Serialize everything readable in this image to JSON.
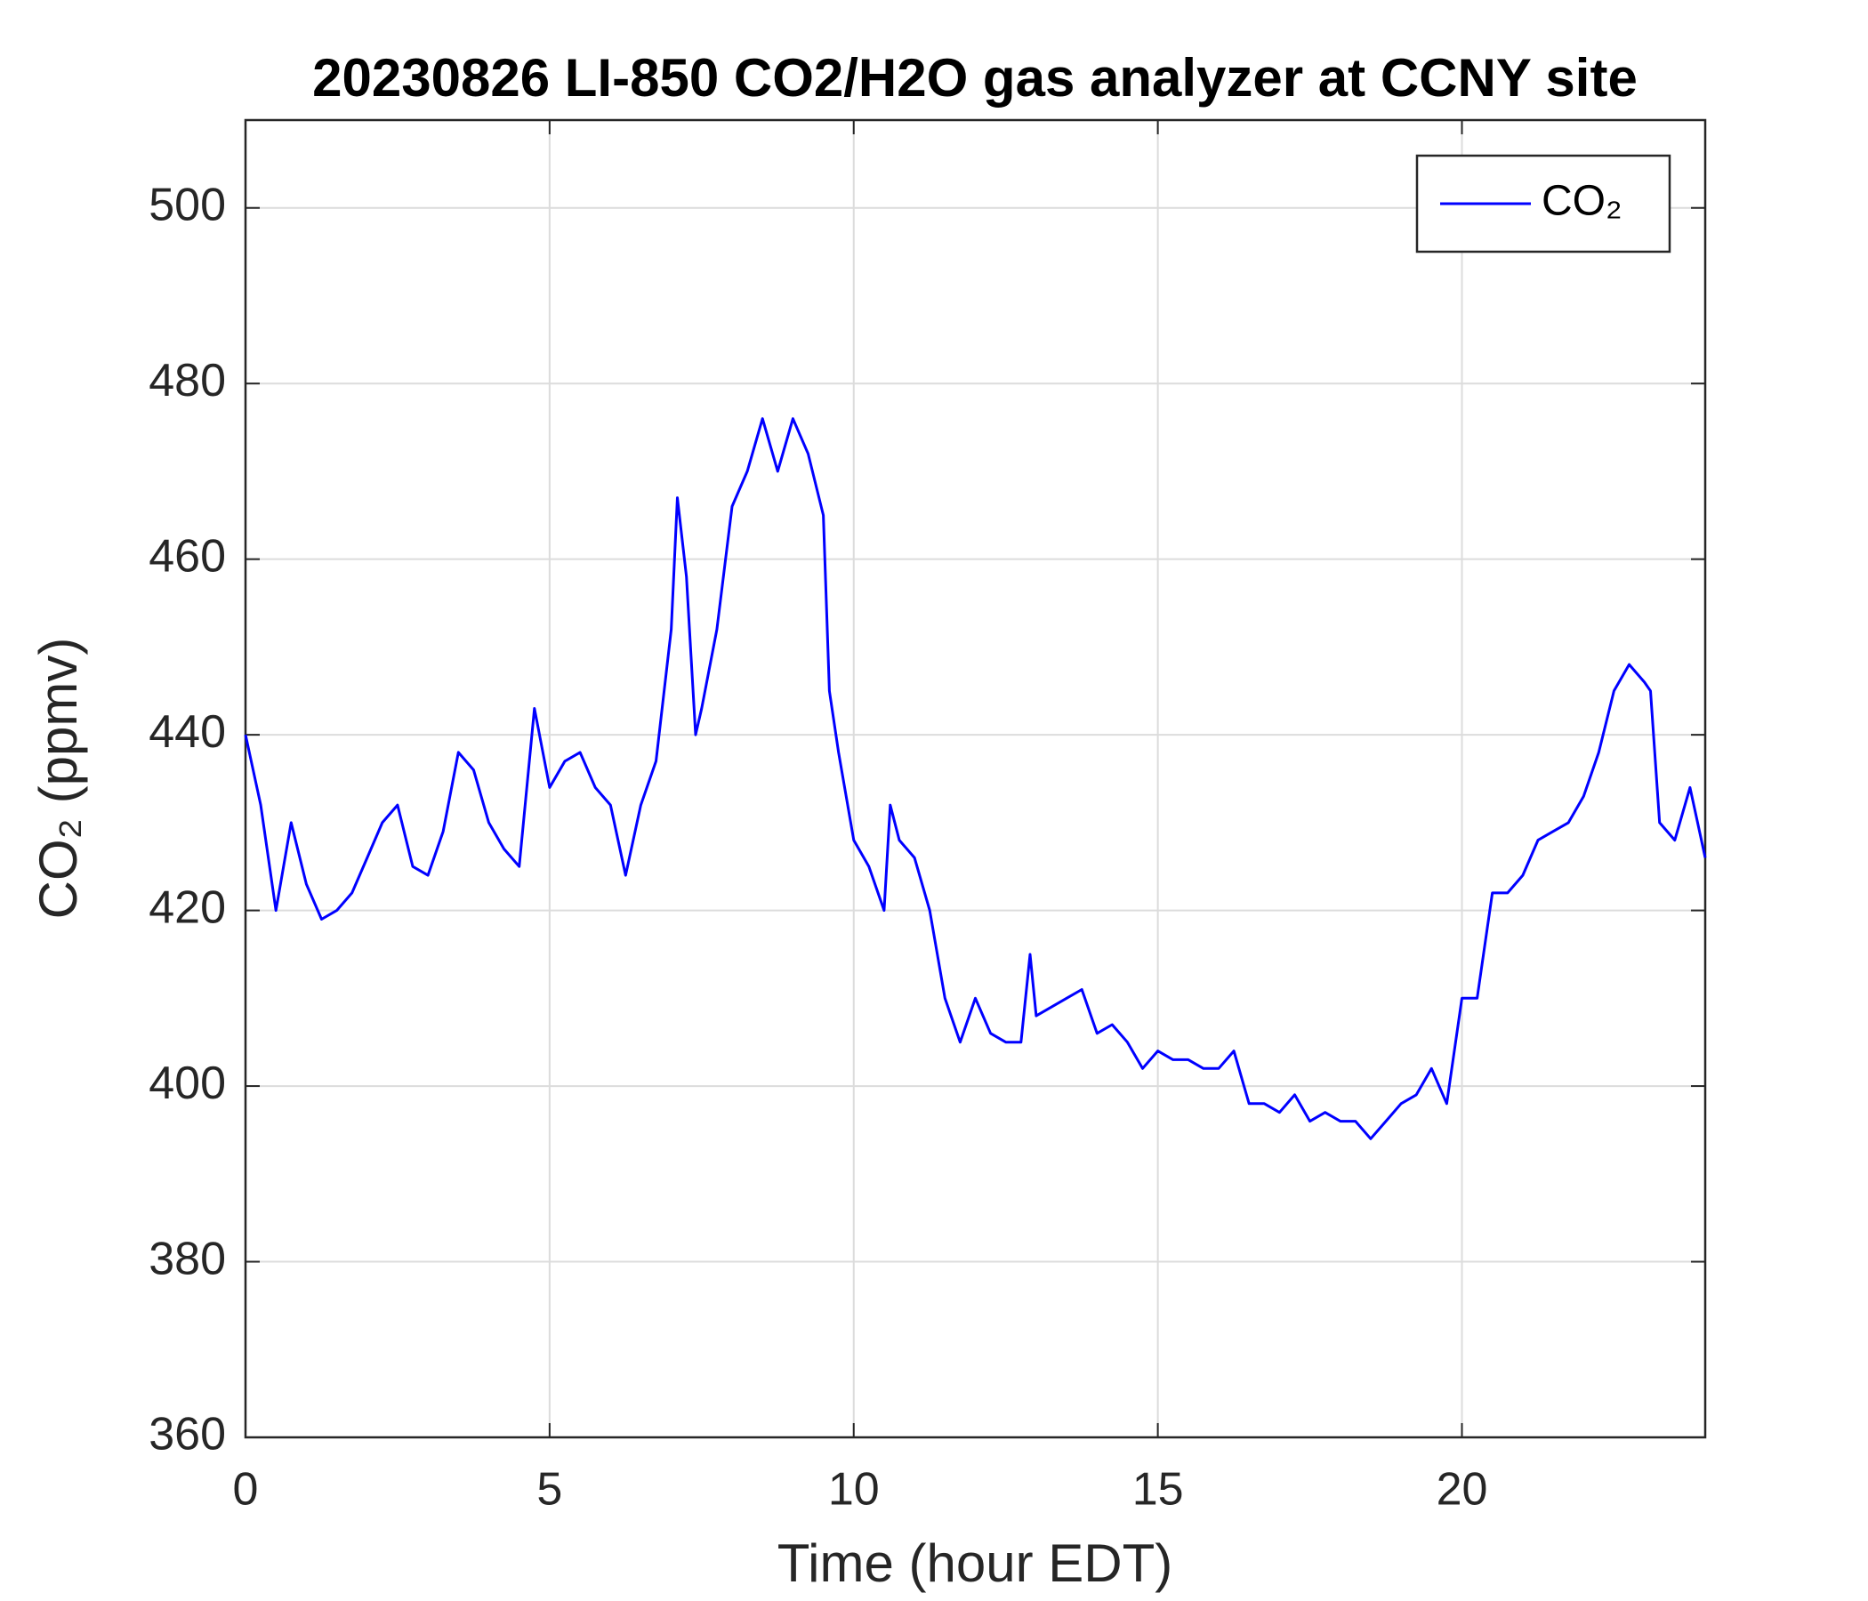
{
  "chart_data": {
    "type": "line",
    "title": "20230826 LI-850 CO2/H2O gas analyzer at CCNY site",
    "xlabel": "Time (hour EDT)",
    "ylabel": "CO₂ (ppmv)",
    "x": [
      0,
      0.25,
      0.5,
      0.75,
      1,
      1.25,
      1.5,
      1.75,
      2,
      2.25,
      2.5,
      2.75,
      3,
      3.25,
      3.5,
      3.75,
      4,
      4.25,
      4.5,
      4.75,
      5,
      5.25,
      5.5,
      5.75,
      6,
      6.25,
      6.5,
      6.75,
      7,
      7.1,
      7.25,
      7.4,
      7.5,
      7.75,
      8,
      8.25,
      8.5,
      8.75,
      9,
      9.25,
      9.5,
      9.6,
      9.75,
      10,
      10.25,
      10.5,
      10.6,
      10.75,
      11,
      11.25,
      11.5,
      11.75,
      12,
      12.25,
      12.5,
      12.75,
      12.9,
      13,
      13.25,
      13.5,
      13.75,
      14,
      14.25,
      14.5,
      14.75,
      15,
      15.25,
      15.5,
      15.75,
      16,
      16.25,
      16.5,
      16.75,
      17,
      17.25,
      17.5,
      17.75,
      18,
      18.25,
      18.5,
      18.75,
      19,
      19.25,
      19.5,
      19.75,
      20,
      20.25,
      20.5,
      20.75,
      21,
      21.25,
      21.5,
      21.75,
      22,
      22.25,
      22.5,
      22.75,
      23,
      23.1,
      23.25,
      23.5,
      23.75,
      24
    ],
    "series": [
      {
        "name": "CO₂",
        "color": "#0000ff",
        "values": [
          440,
          432,
          420,
          430,
          423,
          419,
          420,
          422,
          426,
          430,
          432,
          425,
          424,
          429,
          438,
          436,
          430,
          427,
          425,
          443,
          434,
          437,
          438,
          434,
          432,
          424,
          432,
          437,
          452,
          467,
          458,
          440,
          443,
          452,
          466,
          470,
          476,
          470,
          476,
          472,
          465,
          445,
          438,
          428,
          425,
          420,
          432,
          428,
          426,
          420,
          410,
          405,
          410,
          406,
          405,
          405,
          415,
          408,
          409,
          410,
          411,
          406,
          407,
          405,
          402,
          404,
          403,
          403,
          402,
          402,
          404,
          398,
          398,
          397,
          399,
          396,
          397,
          396,
          396,
          394,
          396,
          398,
          399,
          402,
          398,
          410,
          410,
          422,
          422,
          424,
          428,
          429,
          430,
          433,
          438,
          445,
          448,
          446,
          445,
          430,
          428,
          434,
          426
        ]
      }
    ],
    "xlim": [
      0,
      24
    ],
    "xticks": [
      0,
      5,
      10,
      15,
      20
    ],
    "ylim": [
      360,
      510
    ],
    "yticks": [
      360,
      380,
      400,
      420,
      440,
      460,
      480,
      500
    ],
    "grid": true,
    "legend": "northeast"
  }
}
